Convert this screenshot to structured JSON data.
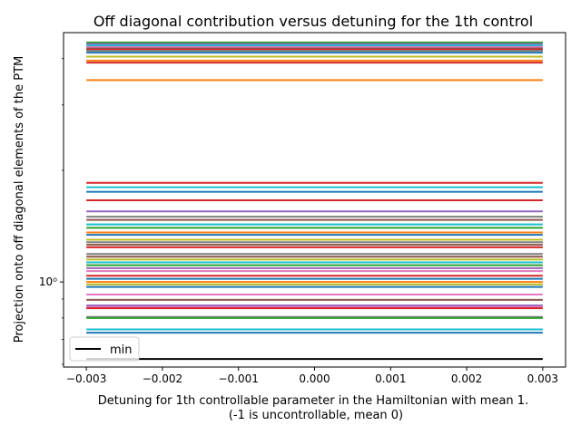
{
  "chart_data": {
    "type": "line",
    "title": "Off diagonal contribution versus detuning for the 1th control",
    "xlabel_line1": "Detuning for 1th controllable parameter in the Hamiltonian with mean 1.",
    "xlabel_line2": "(-1 is uncontrollable, mean 0)",
    "ylabel": "Projection onto off diagonal elements of the PTM",
    "y_scale": "log",
    "xlim": [
      -0.0033,
      0.0033
    ],
    "ylim": [
      0.59,
      4.7
    ],
    "x": [
      -0.003,
      0.003
    ],
    "x_ticks": [
      {
        "value": -0.003,
        "label": "−0.003"
      },
      {
        "value": -0.002,
        "label": "−0.002"
      },
      {
        "value": -0.001,
        "label": "−0.001"
      },
      {
        "value": 0.0,
        "label": "0.000"
      },
      {
        "value": 0.001,
        "label": "0.001"
      },
      {
        "value": 0.002,
        "label": "0.002"
      },
      {
        "value": 0.003,
        "label": "0.003"
      }
    ],
    "y_ticks": [
      {
        "value": 1.0,
        "label": "10⁰"
      }
    ],
    "legend": {
      "placement": "lower-left",
      "label": "min",
      "color": "#000000"
    },
    "min_value": 0.62,
    "series": [
      {
        "color": "#2ca02c",
        "value": 4.42
      },
      {
        "color": "#9467bd",
        "value": 4.38
      },
      {
        "color": "#17becf",
        "value": 4.34
      },
      {
        "color": "#e377c2",
        "value": 4.3
      },
      {
        "color": "#8c564b",
        "value": 4.26
      },
      {
        "color": "#d62728",
        "value": 4.23
      },
      {
        "color": "#7f7f7f",
        "value": 4.2
      },
      {
        "color": "#1f77b4",
        "value": 4.15
      },
      {
        "color": "#bcbd22",
        "value": 4.05
      },
      {
        "color": "#ff7f0e",
        "value": 3.95
      },
      {
        "color": "#d62728",
        "value": 3.9
      },
      {
        "color": "#ff7f0e",
        "value": 3.5
      },
      {
        "color": "#d62728",
        "value": 1.85
      },
      {
        "color": "#17becf",
        "value": 1.8
      },
      {
        "color": "#1f77b4",
        "value": 1.75
      },
      {
        "color": "#d62728",
        "value": 1.66
      },
      {
        "color": "#9467bd",
        "value": 1.55
      },
      {
        "color": "#7f7f7f",
        "value": 1.5
      },
      {
        "color": "#8c564b",
        "value": 1.47
      },
      {
        "color": "#17becf",
        "value": 1.43
      },
      {
        "color": "#2ca02c",
        "value": 1.4
      },
      {
        "color": "#ff7f0e",
        "value": 1.36
      },
      {
        "color": "#1f77b4",
        "value": 1.34
      },
      {
        "color": "#bcbd22",
        "value": 1.3
      },
      {
        "color": "#7f7f7f",
        "value": 1.28
      },
      {
        "color": "#8c564b",
        "value": 1.26
      },
      {
        "color": "#d62728",
        "value": 1.24
      },
      {
        "color": "#7f7f7f",
        "value": 1.19
      },
      {
        "color": "#8c564b",
        "value": 1.17
      },
      {
        "color": "#bcbd22",
        "value": 1.15
      },
      {
        "color": "#17becf",
        "value": 1.13
      },
      {
        "color": "#2ca02c",
        "value": 1.11
      },
      {
        "color": "#9467bd",
        "value": 1.09
      },
      {
        "color": "#e377c2",
        "value": 1.07
      },
      {
        "color": "#d62728",
        "value": 1.04
      },
      {
        "color": "#1f77b4",
        "value": 1.02
      },
      {
        "color": "#ff7f0e",
        "value": 1.0
      },
      {
        "color": "#bcbd22",
        "value": 0.985
      },
      {
        "color": "#1f77b4",
        "value": 0.97
      },
      {
        "color": "#e377c2",
        "value": 0.925
      },
      {
        "color": "#8c564b",
        "value": 0.895
      },
      {
        "color": "#9467bd",
        "value": 0.865
      },
      {
        "color": "#e377c2",
        "value": 0.857
      },
      {
        "color": "#d62728",
        "value": 0.85
      },
      {
        "color": "#7f7f7f",
        "value": 0.805
      },
      {
        "color": "#2ca02c",
        "value": 0.8
      },
      {
        "color": "#17becf",
        "value": 0.745
      },
      {
        "color": "#1f77b4",
        "value": 0.73
      }
    ]
  }
}
